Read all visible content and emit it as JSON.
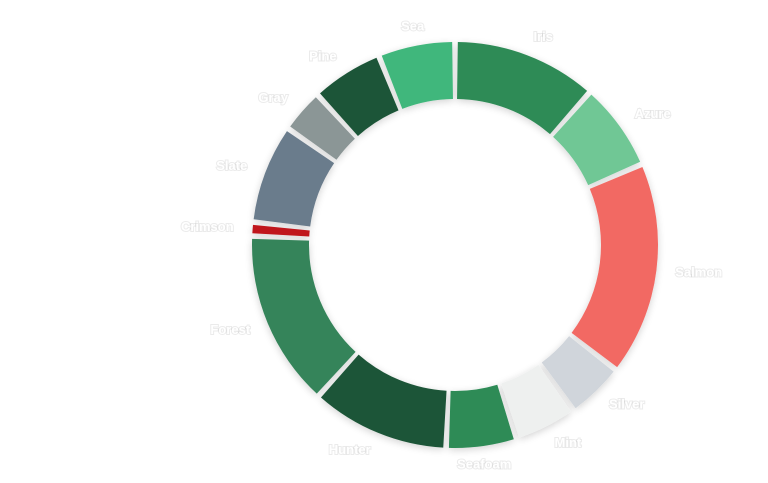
{
  "chart_data": {
    "type": "pie",
    "donut": true,
    "start_angle_deg": 0,
    "title": "",
    "legend": "none",
    "slices": [
      {
        "label": "Iris",
        "value": 11.5,
        "color": "#2e8b57"
      },
      {
        "label": "Azure",
        "value": 7.0,
        "color": "#6fc795"
      },
      {
        "label": "Salmon",
        "value": 17.0,
        "color": "#f26964"
      },
      {
        "label": "Silver",
        "value": 4.6,
        "color": "#d0d5db"
      },
      {
        "label": "Mint",
        "value": 5.0,
        "color": "#eef0ef"
      },
      {
        "label": "Seafoam",
        "value": 5.6,
        "color": "#2e8b57"
      },
      {
        "label": "Hunter",
        "value": 11.0,
        "color": "#1c5537"
      },
      {
        "label": "Forest",
        "value": 14.0,
        "color": "#35845a"
      },
      {
        "label": "Crimson",
        "value": 1.1,
        "color": "#c0151b"
      },
      {
        "label": "Slate",
        "value": 7.9,
        "color": "#6b7c8c"
      },
      {
        "label": "Gray",
        "value": 3.5,
        "color": "#8b9696"
      },
      {
        "label": "Pine",
        "value": 5.7,
        "color": "#1c5537"
      },
      {
        "label": "Sea",
        "value": 6.1,
        "color": "#40b77b"
      }
    ]
  }
}
